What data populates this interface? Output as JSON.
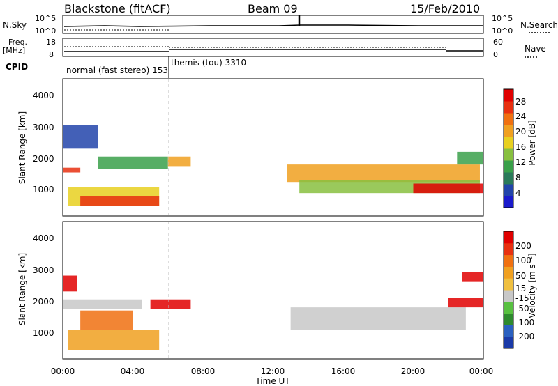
{
  "header": {
    "station": "Blackstone (fitACF)",
    "beam": "Beam 09",
    "date": "15/Feb/2010"
  },
  "top_panels": {
    "nsky_label": "N.Sky",
    "nsearch_label": "N.Search",
    "nsky_ticks": [
      "10^5",
      "10^0"
    ],
    "nsearch_ticks": [
      "10^5",
      "10^0"
    ],
    "freq_label": "Freq.",
    "freq_unit": "[MHz]",
    "freq_ticks": [
      "18",
      "8"
    ],
    "nave_label": "Nave",
    "nave_ticks": [
      "60",
      "0"
    ],
    "cpid_label": "CPID",
    "modes": [
      {
        "name": "normal (fast stereo) 153",
        "start_hour": 0,
        "end_hour": 6
      },
      {
        "name": "themis (tou) 3310",
        "start_hour": 6,
        "end_hour": 24
      }
    ]
  },
  "x_axis": {
    "label": "Time UT",
    "ticks": [
      "00:00",
      "04:00",
      "08:00",
      "12:00",
      "16:00",
      "20:00",
      "00:00"
    ],
    "range_hours": [
      0,
      24
    ]
  },
  "power_panel": {
    "ylabel": "Slant Range [km]",
    "yticks": [
      "4000",
      "3000",
      "2000",
      "1000"
    ],
    "colorbar_label": "Power [dB]",
    "colorbar_ticks": [
      "28",
      "24",
      "20",
      "16",
      "12",
      "8",
      "4"
    ],
    "colors": [
      "#1a1acc",
      "#2244aa",
      "#2a7a5a",
      "#3aa04a",
      "#88c040",
      "#e8d020",
      "#f0a020",
      "#f07010",
      "#e83010",
      "#e00000"
    ]
  },
  "velocity_panel": {
    "ylabel": "Slant Range [km]",
    "yticks": [
      "4000",
      "3000",
      "2000",
      "1000"
    ],
    "colorbar_label": "Velocity [m s⁻¹]",
    "colorbar_ticks": [
      "200",
      "100",
      "50",
      "15",
      "-15",
      "-50",
      "-100",
      "-200"
    ],
    "colors": [
      "#1a3aa8",
      "#2a60c0",
      "#2e8a2e",
      "#58c040",
      "#c8c8c8",
      "#f0c040",
      "#f0a020",
      "#f07010",
      "#e83010",
      "#e00000"
    ]
  },
  "chart_data": {
    "type": "heatmap",
    "x_unit": "hours UT",
    "y_unit": "km",
    "ylim": [
      180,
      4500
    ],
    "xlim": [
      0,
      24
    ],
    "power_regions": [
      {
        "x": [
          0.0,
          2.0
        ],
        "y": [
          2300,
          3050
        ],
        "level": 1
      },
      {
        "x": [
          0.0,
          1.0
        ],
        "y": [
          1550,
          1700
        ],
        "level": 8
      },
      {
        "x": [
          2.0,
          6.0
        ],
        "y": [
          1650,
          2050
        ],
        "level": 3
      },
      {
        "x": [
          6.0,
          7.3
        ],
        "y": [
          1750,
          2050
        ],
        "level": 6
      },
      {
        "x": [
          0.3,
          5.5
        ],
        "y": [
          500,
          1100
        ],
        "level": 5
      },
      {
        "x": [
          1.0,
          5.5
        ],
        "y": [
          500,
          800
        ],
        "level": 8
      },
      {
        "x": [
          12.8,
          23.8
        ],
        "y": [
          1250,
          1800
        ],
        "level": 6
      },
      {
        "x": [
          13.5,
          23.8
        ],
        "y": [
          900,
          1300
        ],
        "level": 4
      },
      {
        "x": [
          20.0,
          24.0
        ],
        "y": [
          900,
          1200
        ],
        "level": 9
      },
      {
        "x": [
          22.5,
          24.0
        ],
        "y": [
          1800,
          2200
        ],
        "level": 3
      }
    ],
    "velocity_regions": [
      {
        "x": [
          0.0,
          0.8
        ],
        "y": [
          2300,
          2800
        ],
        "level": 9
      },
      {
        "x": [
          0.0,
          4.5
        ],
        "y": [
          1750,
          2050
        ],
        "level": 4
      },
      {
        "x": [
          5.0,
          7.3
        ],
        "y": [
          1750,
          2050
        ],
        "level": 9
      },
      {
        "x": [
          0.3,
          5.5
        ],
        "y": [
          450,
          1100
        ],
        "level": 6
      },
      {
        "x": [
          1.0,
          4.0
        ],
        "y": [
          1100,
          1700
        ],
        "level": 7
      },
      {
        "x": [
          13.0,
          23.0
        ],
        "y": [
          1100,
          1800
        ],
        "level": 4
      },
      {
        "x": [
          22.0,
          24.0
        ],
        "y": [
          1800,
          2100
        ],
        "level": 9
      },
      {
        "x": [
          22.8,
          24.0
        ],
        "y": [
          2600,
          2900
        ],
        "level": 9
      }
    ]
  }
}
